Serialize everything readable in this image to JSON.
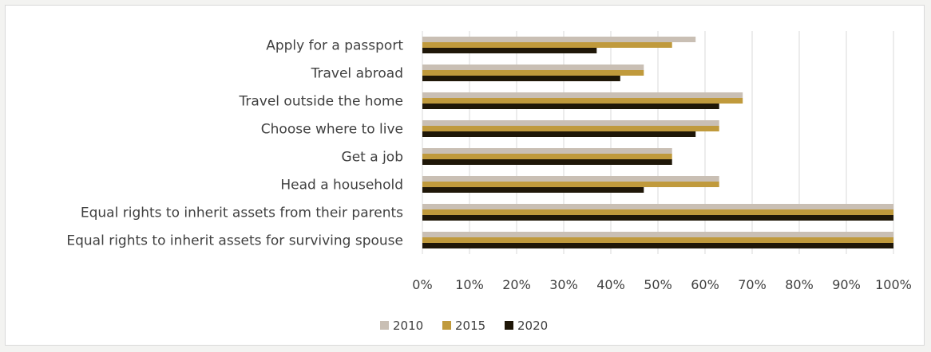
{
  "chart_data": {
    "type": "bar",
    "orientation": "horizontal",
    "categories": [
      "Apply for a passport",
      "Travel abroad",
      "Travel outside the home",
      "Choose where to live",
      "Get a job",
      "Head a household",
      "Equal rights to inherit assets from their parents",
      "Equal rights to inherit assets for surviving spouse"
    ],
    "series": [
      {
        "name": "2010",
        "color": "#c9bfb4",
        "values": [
          58,
          47,
          68,
          63,
          53,
          63,
          100,
          100
        ]
      },
      {
        "name": "2015",
        "color": "#c09a3c",
        "values": [
          53,
          47,
          68,
          63,
          53,
          63,
          100,
          100
        ]
      },
      {
        "name": "2020",
        "color": "#1f1708",
        "values": [
          37,
          42,
          63,
          58,
          53,
          47,
          100,
          100
        ]
      }
    ],
    "xlim": [
      0,
      100
    ],
    "xticks": [
      "0%",
      "10%",
      "20%",
      "30%",
      "40%",
      "50%",
      "60%",
      "70%",
      "80%",
      "90%",
      "100%"
    ],
    "grid": true,
    "legend_position": "bottom"
  }
}
